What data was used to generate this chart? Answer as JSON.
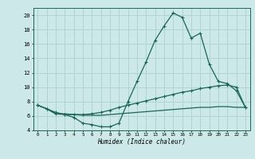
{
  "xlabel": "Humidex (Indice chaleur)",
  "bg_color": "#cce8e8",
  "grid_color": "#b0d4d4",
  "line_color": "#1a6655",
  "xlim": [
    -0.5,
    23.5
  ],
  "ylim": [
    4,
    21
  ],
  "xticks": [
    0,
    1,
    2,
    3,
    4,
    5,
    6,
    7,
    8,
    9,
    10,
    11,
    12,
    13,
    14,
    15,
    16,
    17,
    18,
    19,
    20,
    21,
    22,
    23
  ],
  "yticks": [
    4,
    6,
    8,
    10,
    12,
    14,
    16,
    18,
    20
  ],
  "curve1_x": [
    0,
    1,
    2,
    3,
    4,
    5,
    6,
    7,
    8,
    9,
    10,
    11,
    12,
    13,
    14,
    15,
    16,
    17,
    18,
    19,
    20,
    21,
    22,
    23
  ],
  "curve1_y": [
    7.5,
    7.0,
    6.5,
    6.2,
    5.8,
    5.0,
    4.8,
    4.5,
    4.5,
    5.0,
    8.0,
    10.8,
    13.5,
    16.5,
    18.5,
    20.3,
    19.7,
    16.8,
    17.5,
    13.2,
    10.8,
    10.5,
    9.5,
    7.2
  ],
  "curve2_x": [
    0,
    1,
    2,
    3,
    4,
    5,
    6,
    7,
    8,
    9,
    10,
    11,
    12,
    13,
    14,
    15,
    16,
    17,
    18,
    19,
    20,
    21,
    22,
    23
  ],
  "curve2_y": [
    7.5,
    7.0,
    6.3,
    6.2,
    6.2,
    6.2,
    6.3,
    6.5,
    6.8,
    7.2,
    7.5,
    7.8,
    8.1,
    8.4,
    8.7,
    9.0,
    9.3,
    9.5,
    9.8,
    10.0,
    10.2,
    10.3,
    10.0,
    7.2
  ],
  "curve3_x": [
    0,
    1,
    2,
    3,
    4,
    5,
    6,
    7,
    8,
    9,
    10,
    11,
    12,
    13,
    14,
    15,
    16,
    17,
    18,
    19,
    20,
    21,
    22,
    23
  ],
  "curve3_y": [
    7.5,
    7.0,
    6.3,
    6.3,
    6.2,
    6.1,
    6.1,
    6.1,
    6.2,
    6.3,
    6.4,
    6.5,
    6.6,
    6.7,
    6.8,
    6.9,
    7.0,
    7.1,
    7.2,
    7.2,
    7.3,
    7.3,
    7.2,
    7.2
  ]
}
